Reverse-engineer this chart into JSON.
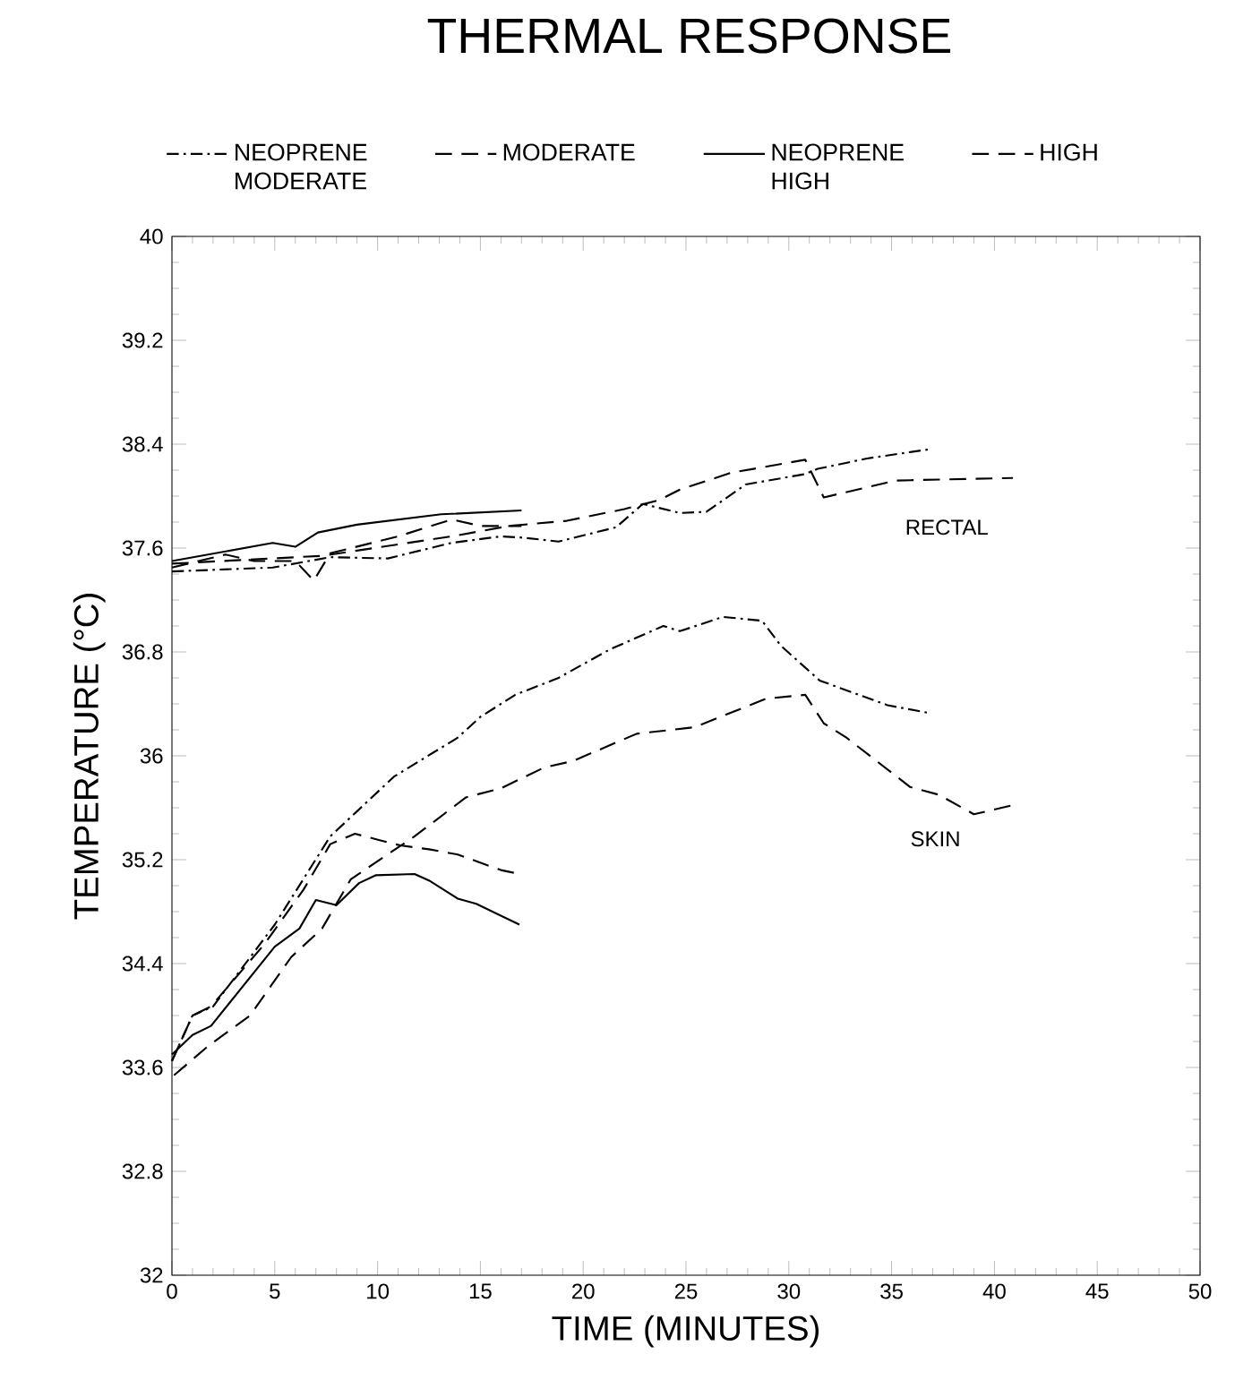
{
  "chart_data": {
    "type": "line",
    "title": "THERMAL RESPONSE",
    "xlabel": "TIME    (MINUTES)",
    "ylabel": "TEMPERATURE (°C)",
    "legend": "top",
    "grid": false,
    "xlim": [
      0,
      50
    ],
    "xticks": [
      0,
      5,
      10,
      15,
      20,
      25,
      30,
      35,
      40,
      45,
      50
    ],
    "ylim": [
      32,
      40
    ],
    "yticks": [
      32,
      32.8,
      33.6,
      34.4,
      35.2,
      36,
      36.8,
      37.6,
      38.4,
      39.2,
      40
    ],
    "annotations": [
      "RECTAL",
      "SKIN"
    ],
    "series": [
      {
        "name": "NEOPRENE MODERATE",
        "color": "#000000",
        "line_style": "dashdot",
        "x": [
          0,
          1,
          2,
          5,
          7.7,
          10.8,
          13.9,
          15,
          16.7,
          18.8,
          21.3,
          23.9,
          24.7,
          26.8,
          28.7,
          29.6,
          31.5,
          33.4,
          34.8,
          36.8
        ],
        "values": [
          33.65,
          34.0,
          34.07,
          34.7,
          35.38,
          35.84,
          36.14,
          36.3,
          36.47,
          36.6,
          36.82,
          37.0,
          36.96,
          37.07,
          37.04,
          36.85,
          36.58,
          36.47,
          36.39,
          36.33
        ]
      },
      {
        "name": "MODERATE",
        "color": "#000000",
        "line_style": "dashed",
        "x": [
          0.1,
          1.8,
          3.8,
          5.8,
          7.3,
          8.7,
          11.8,
          14.3,
          16,
          18.1,
          19.5,
          22.6,
          25.4,
          28.9,
          30.8,
          31.7,
          32.8,
          35.9,
          37.3,
          39,
          40.9
        ],
        "values": [
          33.54,
          33.77,
          34.0,
          34.45,
          34.67,
          35.05,
          35.38,
          35.68,
          35.75,
          35.91,
          35.96,
          36.17,
          36.22,
          36.44,
          36.47,
          36.25,
          36.14,
          35.76,
          35.7,
          35.55,
          35.62
        ]
      },
      {
        "name": "NEOPRENE HIGH",
        "color": "#000000",
        "line_style": "solid",
        "x": [
          0,
          1,
          1.9,
          5,
          6.2,
          7,
          8,
          9.1,
          9.9,
          11.8,
          12.5,
          13.9,
          14.8,
          16.9
        ],
        "values": [
          33.7,
          33.85,
          33.92,
          34.53,
          34.67,
          34.89,
          34.85,
          35.02,
          35.08,
          35.09,
          35.04,
          34.9,
          34.86,
          34.7
        ]
      },
      {
        "name": "HIGH",
        "color": "#000000",
        "line_style": "dashed",
        "x": [
          0,
          1,
          1.9,
          4.5,
          6.4,
          7.7,
          8.9,
          10.1,
          11.1,
          12.5,
          13.9,
          16,
          16.9
        ],
        "values": [
          33.65,
          34.0,
          34.07,
          34.55,
          34.97,
          35.32,
          35.4,
          35.35,
          35.31,
          35.28,
          35.24,
          35.12,
          35.09
        ]
      },
      {
        "color": "#000000",
        "line_style": "dashdot",
        "x": [
          0,
          4.9,
          7.7,
          10.5,
          13.6,
          16,
          17.1,
          18.8,
          21.6,
          22.9,
          24.7,
          26,
          27.9,
          30.8,
          31.4,
          33.8,
          36.8
        ],
        "values": [
          37.42,
          37.45,
          37.53,
          37.52,
          37.64,
          37.69,
          37.68,
          37.65,
          37.76,
          37.94,
          37.87,
          37.88,
          38.09,
          38.17,
          38.21,
          38.29,
          38.36
        ]
      },
      {
        "color": "#000000",
        "line_style": "dashed",
        "x": [
          0,
          7.3,
          13.6,
          16.4,
          19.2,
          22,
          23.7,
          24.7,
          27.2,
          30.8,
          31.7,
          35.2,
          40.9
        ],
        "values": [
          37.48,
          37.54,
          37.69,
          37.77,
          37.81,
          37.9,
          37.97,
          38.05,
          38.18,
          38.28,
          37.99,
          38.12,
          38.14
        ]
      },
      {
        "color": "#000000",
        "line_style": "solid",
        "x": [
          0,
          4.9,
          6,
          7.1,
          9,
          13.1,
          17
        ],
        "values": [
          37.5,
          37.64,
          37.61,
          37.72,
          37.78,
          37.86,
          37.89
        ]
      },
      {
        "color": "#000000",
        "line_style": "dashed",
        "x": [
          0,
          2.6,
          4,
          6,
          6.9,
          7.7,
          11,
          13.6,
          15,
          17
        ],
        "values": [
          37.45,
          37.55,
          37.5,
          37.5,
          37.35,
          37.56,
          37.69,
          37.82,
          37.77,
          37.77
        ]
      }
    ]
  }
}
